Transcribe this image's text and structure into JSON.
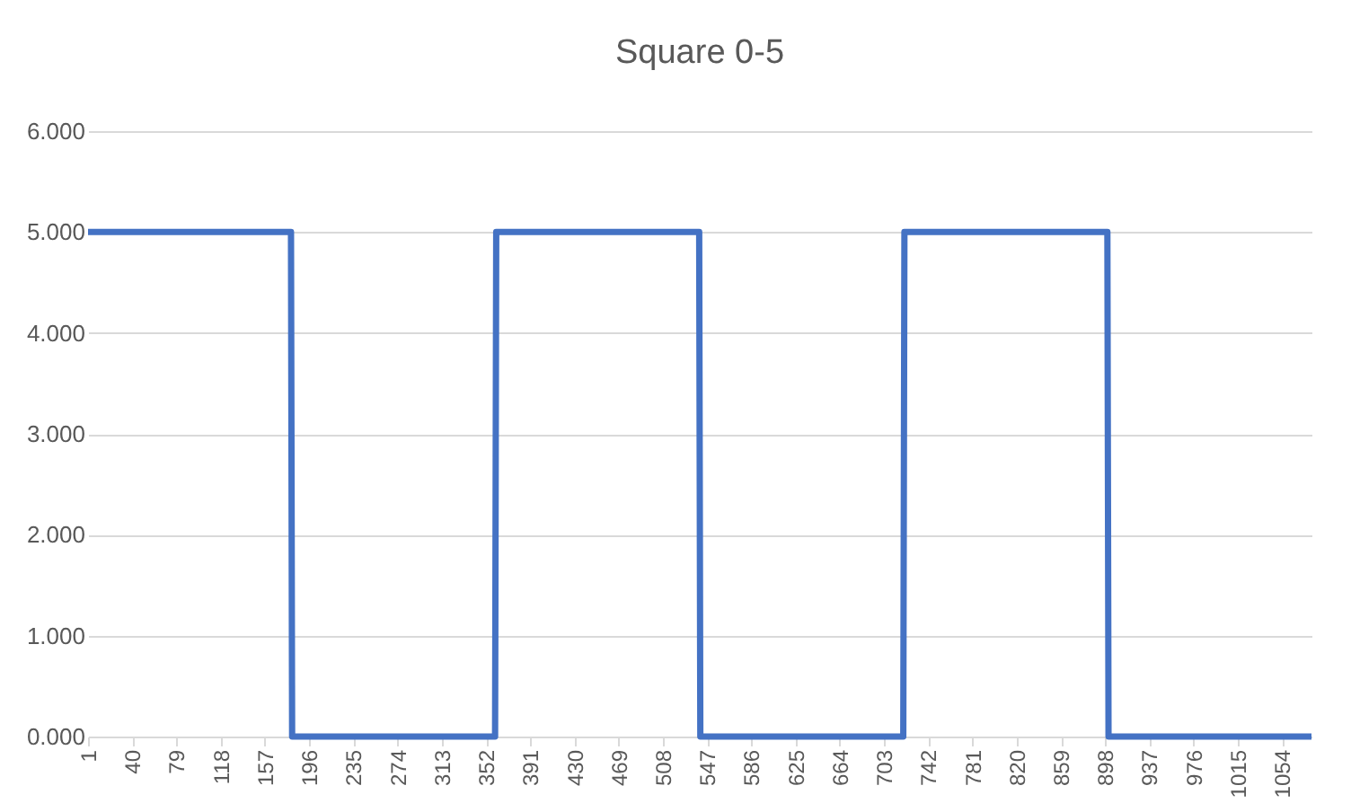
{
  "chart_data": {
    "type": "line",
    "title": "Square 0-5",
    "x": [
      1,
      180,
      181,
      360,
      361,
      540,
      541,
      720,
      721,
      900,
      901,
      1080
    ],
    "series": [
      {
        "color": "#4472c4",
        "values": [
          5,
          5,
          0,
          0,
          5,
          5,
          0,
          0,
          5,
          5,
          0,
          0
        ]
      }
    ],
    "xlim": [
      1,
      1080
    ],
    "xticks": [
      1,
      40,
      79,
      118,
      157,
      196,
      235,
      274,
      313,
      352,
      391,
      430,
      469,
      508,
      547,
      586,
      625,
      664,
      703,
      742,
      781,
      820,
      859,
      898,
      937,
      976,
      1015,
      1054
    ],
    "ylim": [
      0,
      6
    ],
    "yticks": [
      {
        "value": 0,
        "label": "0.000"
      },
      {
        "value": 1,
        "label": "1.000"
      },
      {
        "value": 2,
        "label": "2.000"
      },
      {
        "value": 3,
        "label": "3.000"
      },
      {
        "value": 4,
        "label": "4.000"
      },
      {
        "value": 5,
        "label": "5.000"
      },
      {
        "value": 6,
        "label": "6.000"
      }
    ],
    "grid": "y",
    "legend": false,
    "marker": "none",
    "line_style": "solid"
  }
}
